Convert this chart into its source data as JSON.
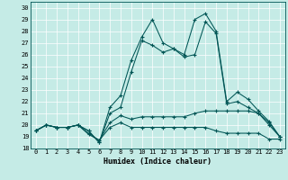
{
  "xlabel": "Humidex (Indice chaleur)",
  "bg_color": "#c5ebe6",
  "grid_color": "#ffffff",
  "line_color": "#005555",
  "ylim": [
    18,
    30.5
  ],
  "xlim": [
    -0.5,
    23.5
  ],
  "yticks": [
    18,
    19,
    20,
    21,
    22,
    23,
    24,
    25,
    26,
    27,
    28,
    29,
    30
  ],
  "x_ticks": [
    0,
    1,
    2,
    3,
    4,
    5,
    6,
    7,
    8,
    9,
    10,
    11,
    12,
    13,
    14,
    15,
    16,
    17,
    18,
    19,
    20,
    21,
    22,
    23
  ],
  "series": [
    [
      19.5,
      20.0,
      19.8,
      19.8,
      20.0,
      19.5,
      18.5,
      21.5,
      22.5,
      25.5,
      27.5,
      29.0,
      27.0,
      26.5,
      26.0,
      29.0,
      29.5,
      28.0,
      22.0,
      22.8,
      22.2,
      21.2,
      20.3,
      19.0
    ],
    [
      19.5,
      20.0,
      19.8,
      19.8,
      20.0,
      19.5,
      18.5,
      21.0,
      21.5,
      24.5,
      27.2,
      26.8,
      26.2,
      26.5,
      25.8,
      26.0,
      28.8,
      27.8,
      21.8,
      22.0,
      21.5,
      21.0,
      20.2,
      19.0
    ],
    [
      19.5,
      20.0,
      19.8,
      19.8,
      20.0,
      19.3,
      18.7,
      20.2,
      20.8,
      20.5,
      20.7,
      20.7,
      20.7,
      20.7,
      20.7,
      21.0,
      21.2,
      21.2,
      21.2,
      21.2,
      21.2,
      21.0,
      20.0,
      19.0
    ],
    [
      19.5,
      20.0,
      19.8,
      19.8,
      20.0,
      19.2,
      18.7,
      19.8,
      20.2,
      19.8,
      19.8,
      19.8,
      19.8,
      19.8,
      19.8,
      19.8,
      19.8,
      19.5,
      19.3,
      19.3,
      19.3,
      19.3,
      18.8,
      18.8
    ]
  ]
}
